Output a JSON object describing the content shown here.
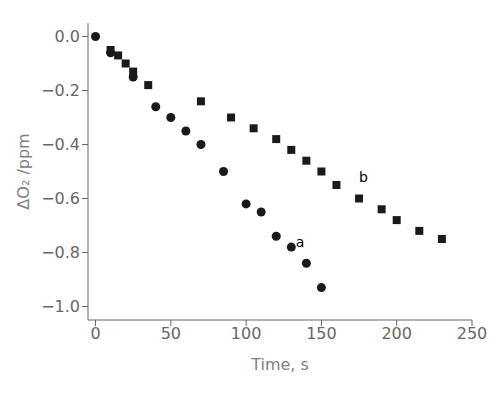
{
  "chart_data": {
    "type": "scatter",
    "x_label": "Time, s",
    "y_label": "ΔO₂ /ppm",
    "xlim": [
      -5,
      250
    ],
    "ylim": [
      -1.05,
      0.05
    ],
    "xticks": [
      0,
      50,
      100,
      150,
      200,
      250
    ],
    "yticks": [
      {
        "value": 0.0,
        "label": "0.0"
      },
      {
        "value": -0.2,
        "label": "−0.2"
      },
      {
        "value": -0.4,
        "label": "−0.4"
      },
      {
        "value": -0.6,
        "label": "−0.6"
      },
      {
        "value": -0.8,
        "label": "−0.8"
      },
      {
        "value": -1.0,
        "label": "−1.0"
      }
    ],
    "grid": false,
    "series": [
      {
        "color": "#1a1a1a",
        "marker": "circle",
        "x": [
          0,
          10,
          25,
          40,
          50,
          60,
          70,
          85,
          100,
          110,
          120,
          130,
          140,
          150
        ],
        "values": [
          0.0,
          -0.06,
          -0.15,
          -0.26,
          -0.3,
          -0.35,
          -0.4,
          -0.5,
          -0.62,
          -0.65,
          -0.74,
          -0.78,
          -0.84,
          -0.93
        ]
      },
      {
        "color": "#1a1a1a",
        "marker": "square",
        "x": [
          10,
          15,
          20,
          25,
          35,
          70,
          90,
          105,
          120,
          130,
          140,
          150,
          160,
          175,
          190,
          200,
          215,
          230
        ],
        "values": [
          -0.05,
          -0.07,
          -0.1,
          -0.13,
          -0.18,
          -0.24,
          -0.3,
          -0.34,
          -0.38,
          -0.42,
          -0.46,
          -0.5,
          -0.55,
          -0.6,
          -0.64,
          -0.68,
          -0.72,
          -0.75
        ]
      }
    ],
    "annotations": [
      {
        "text": "a",
        "x": 133,
        "y": -0.76
      },
      {
        "text": "b",
        "x": 175,
        "y": -0.52
      }
    ]
  }
}
